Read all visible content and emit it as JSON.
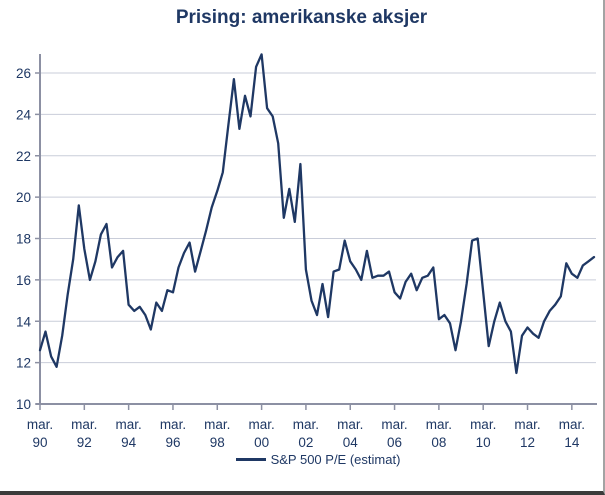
{
  "colors": {
    "line": "#1F3864",
    "title": "#1F3864",
    "text": "#1F3864",
    "axis": "#8C90A3",
    "grid": "#C9CDD9",
    "background": "#FFFFFF",
    "frame_border_right": "#A3A3A3",
    "frame_border_bottom": "#3B3B3B"
  },
  "chart_data": {
    "type": "line",
    "title": "Prising: amerikanske aksjer",
    "xlabel": "",
    "ylabel": "",
    "ylim": [
      10,
      26
    ],
    "y_ticks": [
      10,
      12,
      14,
      16,
      18,
      20,
      22,
      24,
      26
    ],
    "grid": "horizontal",
    "legend_position": "bottom",
    "x_start": "mar. 1990",
    "x_end": "mar. 2015",
    "x_frequency": "quarterly",
    "x_tick_month": "mar.",
    "x_tick_years": [
      "90",
      "92",
      "94",
      "96",
      "98",
      "00",
      "02",
      "04",
      "06",
      "08",
      "10",
      "12",
      "14"
    ],
    "x_tick_every_n_points": 8,
    "series": [
      {
        "name": "S&P 500 P/E (estimat)",
        "values": [
          12.6,
          13.5,
          12.3,
          11.8,
          13.3,
          15.3,
          17.0,
          19.6,
          17.5,
          16.0,
          16.9,
          18.2,
          18.7,
          16.6,
          17.1,
          17.4,
          14.8,
          14.5,
          14.7,
          14.3,
          13.6,
          14.9,
          14.5,
          15.5,
          15.4,
          16.6,
          17.3,
          17.8,
          16.4,
          17.4,
          18.4,
          19.5,
          20.3,
          21.2,
          23.5,
          25.7,
          23.3,
          24.9,
          23.9,
          26.3,
          26.9,
          24.3,
          23.9,
          22.6,
          19.0,
          20.4,
          18.8,
          21.6,
          16.5,
          15.0,
          14.3,
          15.8,
          14.2,
          16.4,
          16.5,
          17.9,
          16.9,
          16.5,
          16.0,
          17.4,
          16.1,
          16.2,
          16.2,
          16.4,
          15.4,
          15.1,
          15.9,
          16.3,
          15.5,
          16.1,
          16.2,
          16.6,
          14.1,
          14.3,
          13.9,
          12.6,
          14.0,
          15.8,
          17.9,
          18.0,
          15.4,
          12.8,
          14.0,
          14.9,
          14.0,
          13.5,
          11.5,
          13.3,
          13.7,
          13.4,
          13.2,
          14.0,
          14.5,
          14.8,
          15.2,
          16.8,
          16.3,
          16.1,
          16.7,
          16.9,
          17.1
        ]
      }
    ]
  }
}
